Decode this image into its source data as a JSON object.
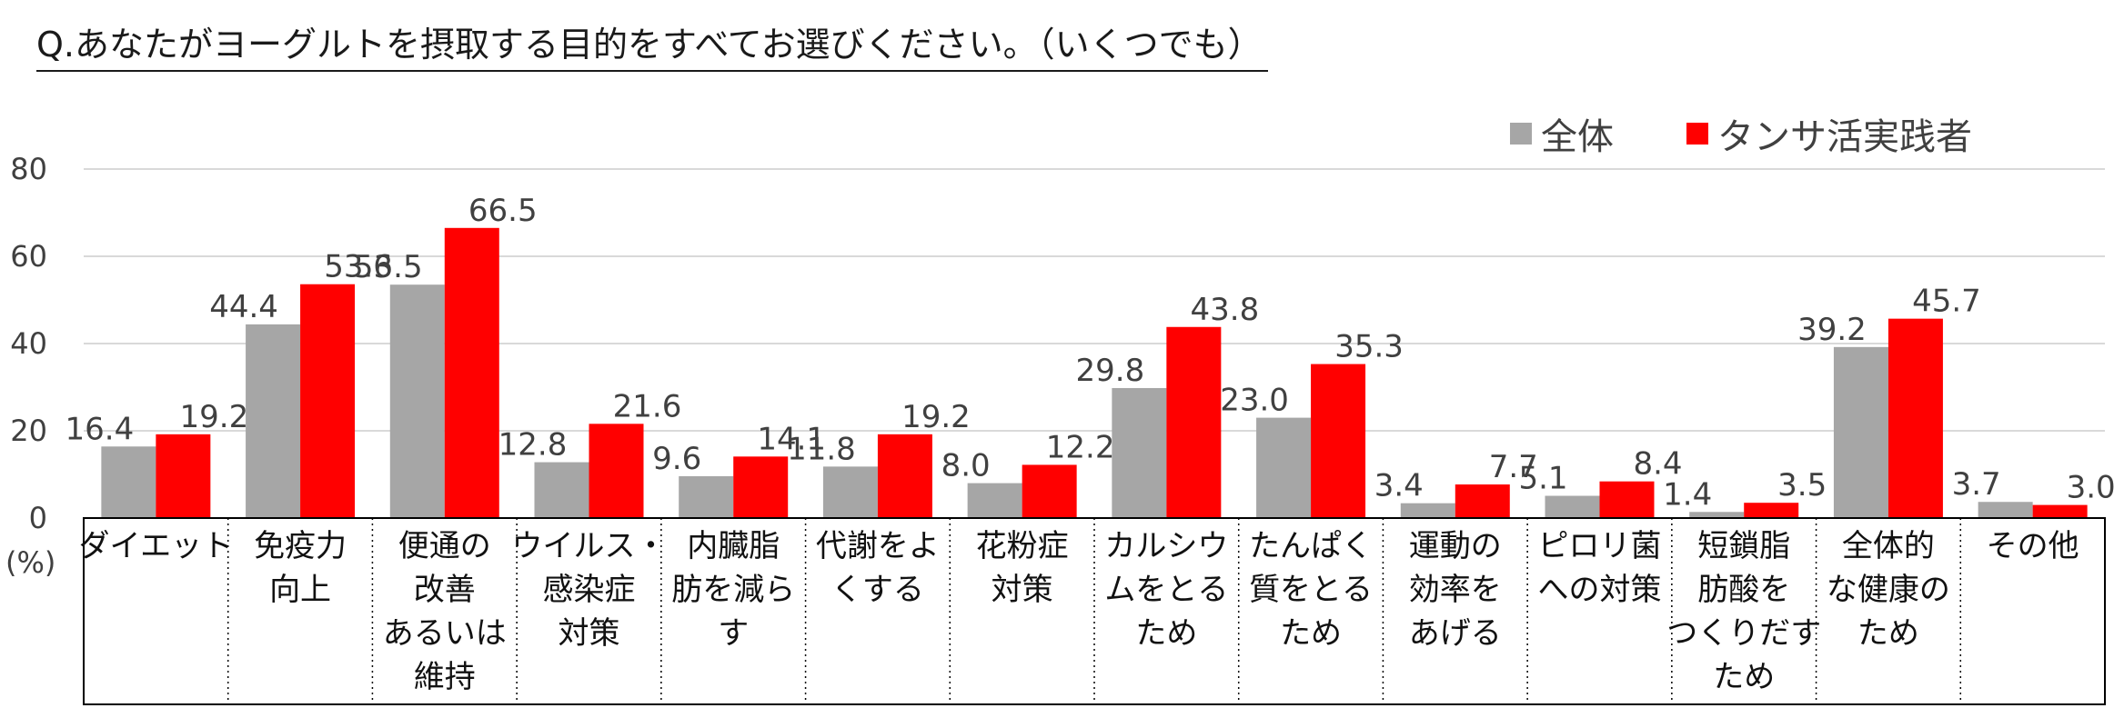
{
  "title": "Q.あなたがヨーグルトを摂取する目的をすべてお選びください。（いくつでも）",
  "colors": {
    "series_all": "#a6a6a6",
    "series_tansa": "#ff0000",
    "grid": "#d9d9d9"
  },
  "chart_data": {
    "type": "bar",
    "title": "Q.あなたがヨーグルトを摂取する目的をすべてお選びください。（いくつでも）",
    "ylabel": "(%)",
    "ylim": [
      0,
      80
    ],
    "yticks": [
      "0",
      "20",
      "40",
      "60",
      "80"
    ],
    "grid": true,
    "legend_position": "top-right",
    "categories": [
      [
        "ダイエット"
      ],
      [
        "免疫力",
        "向上"
      ],
      [
        "便通の",
        "改善",
        "あるいは",
        "維持"
      ],
      [
        "ウイルス・",
        "感染症",
        "対策"
      ],
      [
        "内臓脂",
        "肪を減ら",
        "す"
      ],
      [
        "代謝をよ",
        "くする"
      ],
      [
        "花粉症",
        "対策"
      ],
      [
        "カルシウ",
        "ムをとる",
        "ため"
      ],
      [
        "たんぱく",
        "質をとる",
        "ため"
      ],
      [
        "運動の",
        "効率を",
        "あげる"
      ],
      [
        "ピロリ菌",
        "への対策"
      ],
      [
        "短鎖脂",
        "肪酸を",
        "つくりだす",
        "ため"
      ],
      [
        "全体的",
        "な健康の",
        "ため"
      ],
      [
        "その他"
      ]
    ],
    "series": [
      {
        "name": "全体",
        "values": [
          16.4,
          44.4,
          53.5,
          12.8,
          9.6,
          11.8,
          8.0,
          29.8,
          23.0,
          3.4,
          5.1,
          1.4,
          39.2,
          3.7
        ]
      },
      {
        "name": "タンサ活実践者",
        "values": [
          19.2,
          53.6,
          66.5,
          21.6,
          14.1,
          19.2,
          12.2,
          43.8,
          35.3,
          7.7,
          8.4,
          3.5,
          45.7,
          3.0
        ]
      }
    ]
  }
}
